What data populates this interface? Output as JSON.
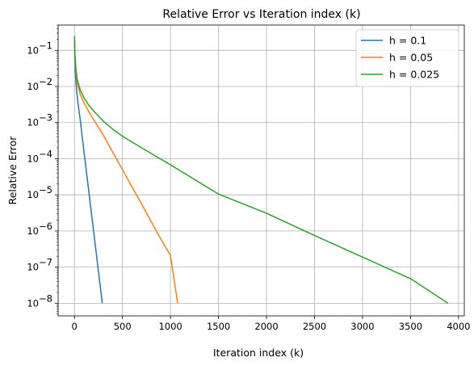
{
  "chart_data": {
    "type": "line",
    "title": "Relative Error vs Iteration index (k)",
    "xlabel": "Iteration index (k)",
    "ylabel": "Relative Error",
    "yscale": "log",
    "xlim": [
      -170,
      4060
    ],
    "ylim_log10": [
      -8.35,
      -0.3
    ],
    "xticks": [
      0,
      500,
      1000,
      1500,
      2000,
      2500,
      3000,
      3500,
      4000
    ],
    "xtick_labels": [
      "0",
      "500",
      "1000",
      "1500",
      "2000",
      "2500",
      "3000",
      "3500",
      "4000"
    ],
    "yticks": [
      {
        "base": "10",
        "exp": "−8",
        "value": 1e-08
      },
      {
        "base": "10",
        "exp": "−7",
        "value": 1e-07
      },
      {
        "base": "10",
        "exp": "−6",
        "value": 1e-06
      },
      {
        "base": "10",
        "exp": "−5",
        "value": 1e-05
      },
      {
        "base": "10",
        "exp": "−4",
        "value": 0.0001
      },
      {
        "base": "10",
        "exp": "−3",
        "value": 0.001
      },
      {
        "base": "10",
        "exp": "−2",
        "value": 0.01
      },
      {
        "base": "10",
        "exp": "−1",
        "value": 0.1
      }
    ],
    "grid": true,
    "legend_position": "top-right",
    "series": [
      {
        "name": "h = 0.1",
        "color": "#1f77b4",
        "x": [
          0,
          3,
          8,
          15,
          25,
          40,
          60,
          100,
          150,
          200,
          250,
          290
        ],
        "y": [
          0.25,
          0.08,
          0.03,
          0.013,
          0.0065,
          0.003,
          0.0012,
          0.00015,
          1.2e-05,
          9.5e-07,
          7.5e-08,
          1e-08
        ]
      },
      {
        "name": "h = 0.05",
        "color": "#ff7f0e",
        "x": [
          0,
          5,
          15,
          30,
          60,
          100,
          150,
          200,
          300,
          400,
          500,
          600,
          700,
          800,
          900,
          1000,
          1075
        ],
        "y": [
          0.25,
          0.07,
          0.025,
          0.012,
          0.006,
          0.0035,
          0.002,
          0.0012,
          0.00045,
          0.00015,
          5e-05,
          1.65e-05,
          5.5e-06,
          1.8e-06,
          6e-07,
          2.1e-07,
          1e-08
        ]
      },
      {
        "name": "h = 0.025",
        "color": "#2ca02c",
        "x": [
          0,
          5,
          15,
          30,
          60,
          100,
          150,
          200,
          300,
          400,
          500,
          700,
          1000,
          1500,
          2000,
          2500,
          3000,
          3500,
          3890
        ],
        "y": [
          0.25,
          0.08,
          0.03,
          0.015,
          0.008,
          0.0048,
          0.003,
          0.0021,
          0.0011,
          0.00065,
          0.00042,
          0.0002,
          6.8e-05,
          1.05e-05,
          3.1e-06,
          7.5e-07,
          1.9e-07,
          4.8e-08,
          1e-08
        ]
      }
    ]
  }
}
